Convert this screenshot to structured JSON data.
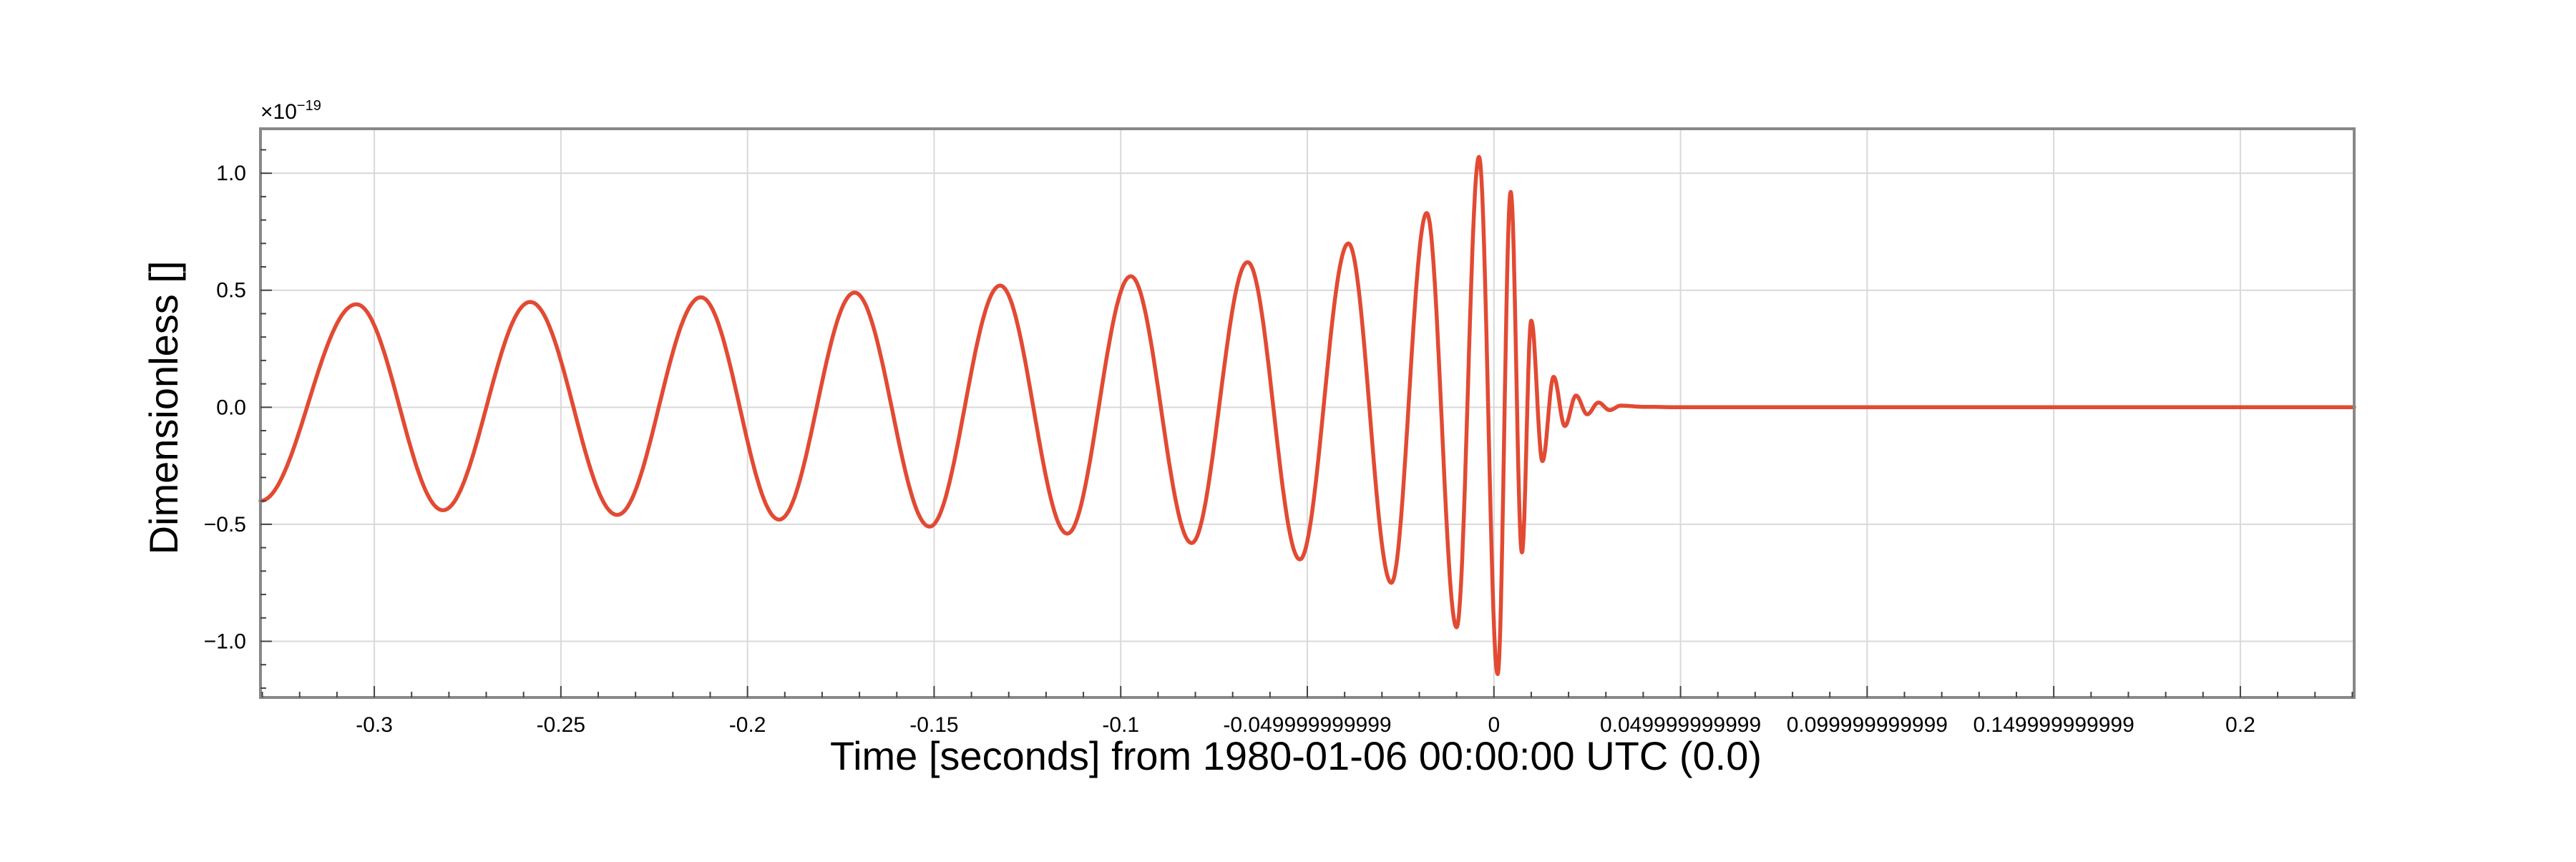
{
  "chart_data": {
    "type": "line",
    "title": "",
    "xlabel": "Time [seconds] from 1980-01-06 00:00:00 UTC (0.0)",
    "ylabel": "Dimensionless []",
    "y_offset_label": {
      "base": "×10",
      "exponent": "−19"
    },
    "xlim": [
      -0.3305,
      0.2305
    ],
    "ylim": [
      -1.24,
      1.19
    ],
    "x_scale": "linear",
    "y_scale": "linear",
    "grid": true,
    "legend": "none",
    "line_color": "#e24a33",
    "x_ticks": [
      {
        "value": -0.3,
        "label": "-0.3"
      },
      {
        "value": -0.25,
        "label": "-0.25"
      },
      {
        "value": -0.2,
        "label": "-0.2"
      },
      {
        "value": -0.15,
        "label": "-0.15"
      },
      {
        "value": -0.1,
        "label": "-0.1"
      },
      {
        "value": -0.05,
        "label": "-0.049999999999"
      },
      {
        "value": 0,
        "label": "0"
      },
      {
        "value": 0.05,
        "label": "0.049999999999"
      },
      {
        "value": 0.1,
        "label": "0.099999999999"
      },
      {
        "value": 0.15,
        "label": "0.149999999999"
      },
      {
        "value": 0.2,
        "label": "0.2"
      }
    ],
    "y_ticks": [
      {
        "value": -1.0,
        "label": "−1.0"
      },
      {
        "value": -0.5,
        "label": "−0.5"
      },
      {
        "value": 0.0,
        "label": "0.0"
      },
      {
        "value": 0.5,
        "label": "0.5"
      },
      {
        "value": 1.0,
        "label": "1.0"
      }
    ],
    "series": [
      {
        "x": [
          -0.3305,
          -0.3048,
          -0.2816,
          -0.2582,
          -0.2349,
          -0.2125,
          -0.1915,
          -0.1713,
          -0.1512,
          -0.1323,
          -0.1143,
          -0.0973,
          -0.081,
          -0.066,
          -0.052,
          -0.039,
          -0.0275,
          -0.018,
          -0.01,
          -0.004,
          0.001,
          0.0045,
          0.0075,
          0.01,
          0.013,
          0.016,
          0.019,
          0.022,
          0.025,
          0.028,
          0.031,
          0.034,
          0.04,
          0.05,
          0.2305
        ],
        "y": [
          -0.4,
          0.44,
          -0.44,
          0.45,
          -0.46,
          0.47,
          -0.48,
          0.49,
          -0.51,
          0.52,
          -0.54,
          0.56,
          -0.58,
          0.62,
          -0.65,
          0.7,
          -0.75,
          0.83,
          -0.94,
          1.07,
          -1.14,
          0.92,
          -0.62,
          0.37,
          -0.23,
          0.13,
          -0.08,
          0.05,
          -0.03,
          0.02,
          -0.012,
          0.007,
          0.002,
          0.0,
          0.0
        ]
      }
    ]
  }
}
